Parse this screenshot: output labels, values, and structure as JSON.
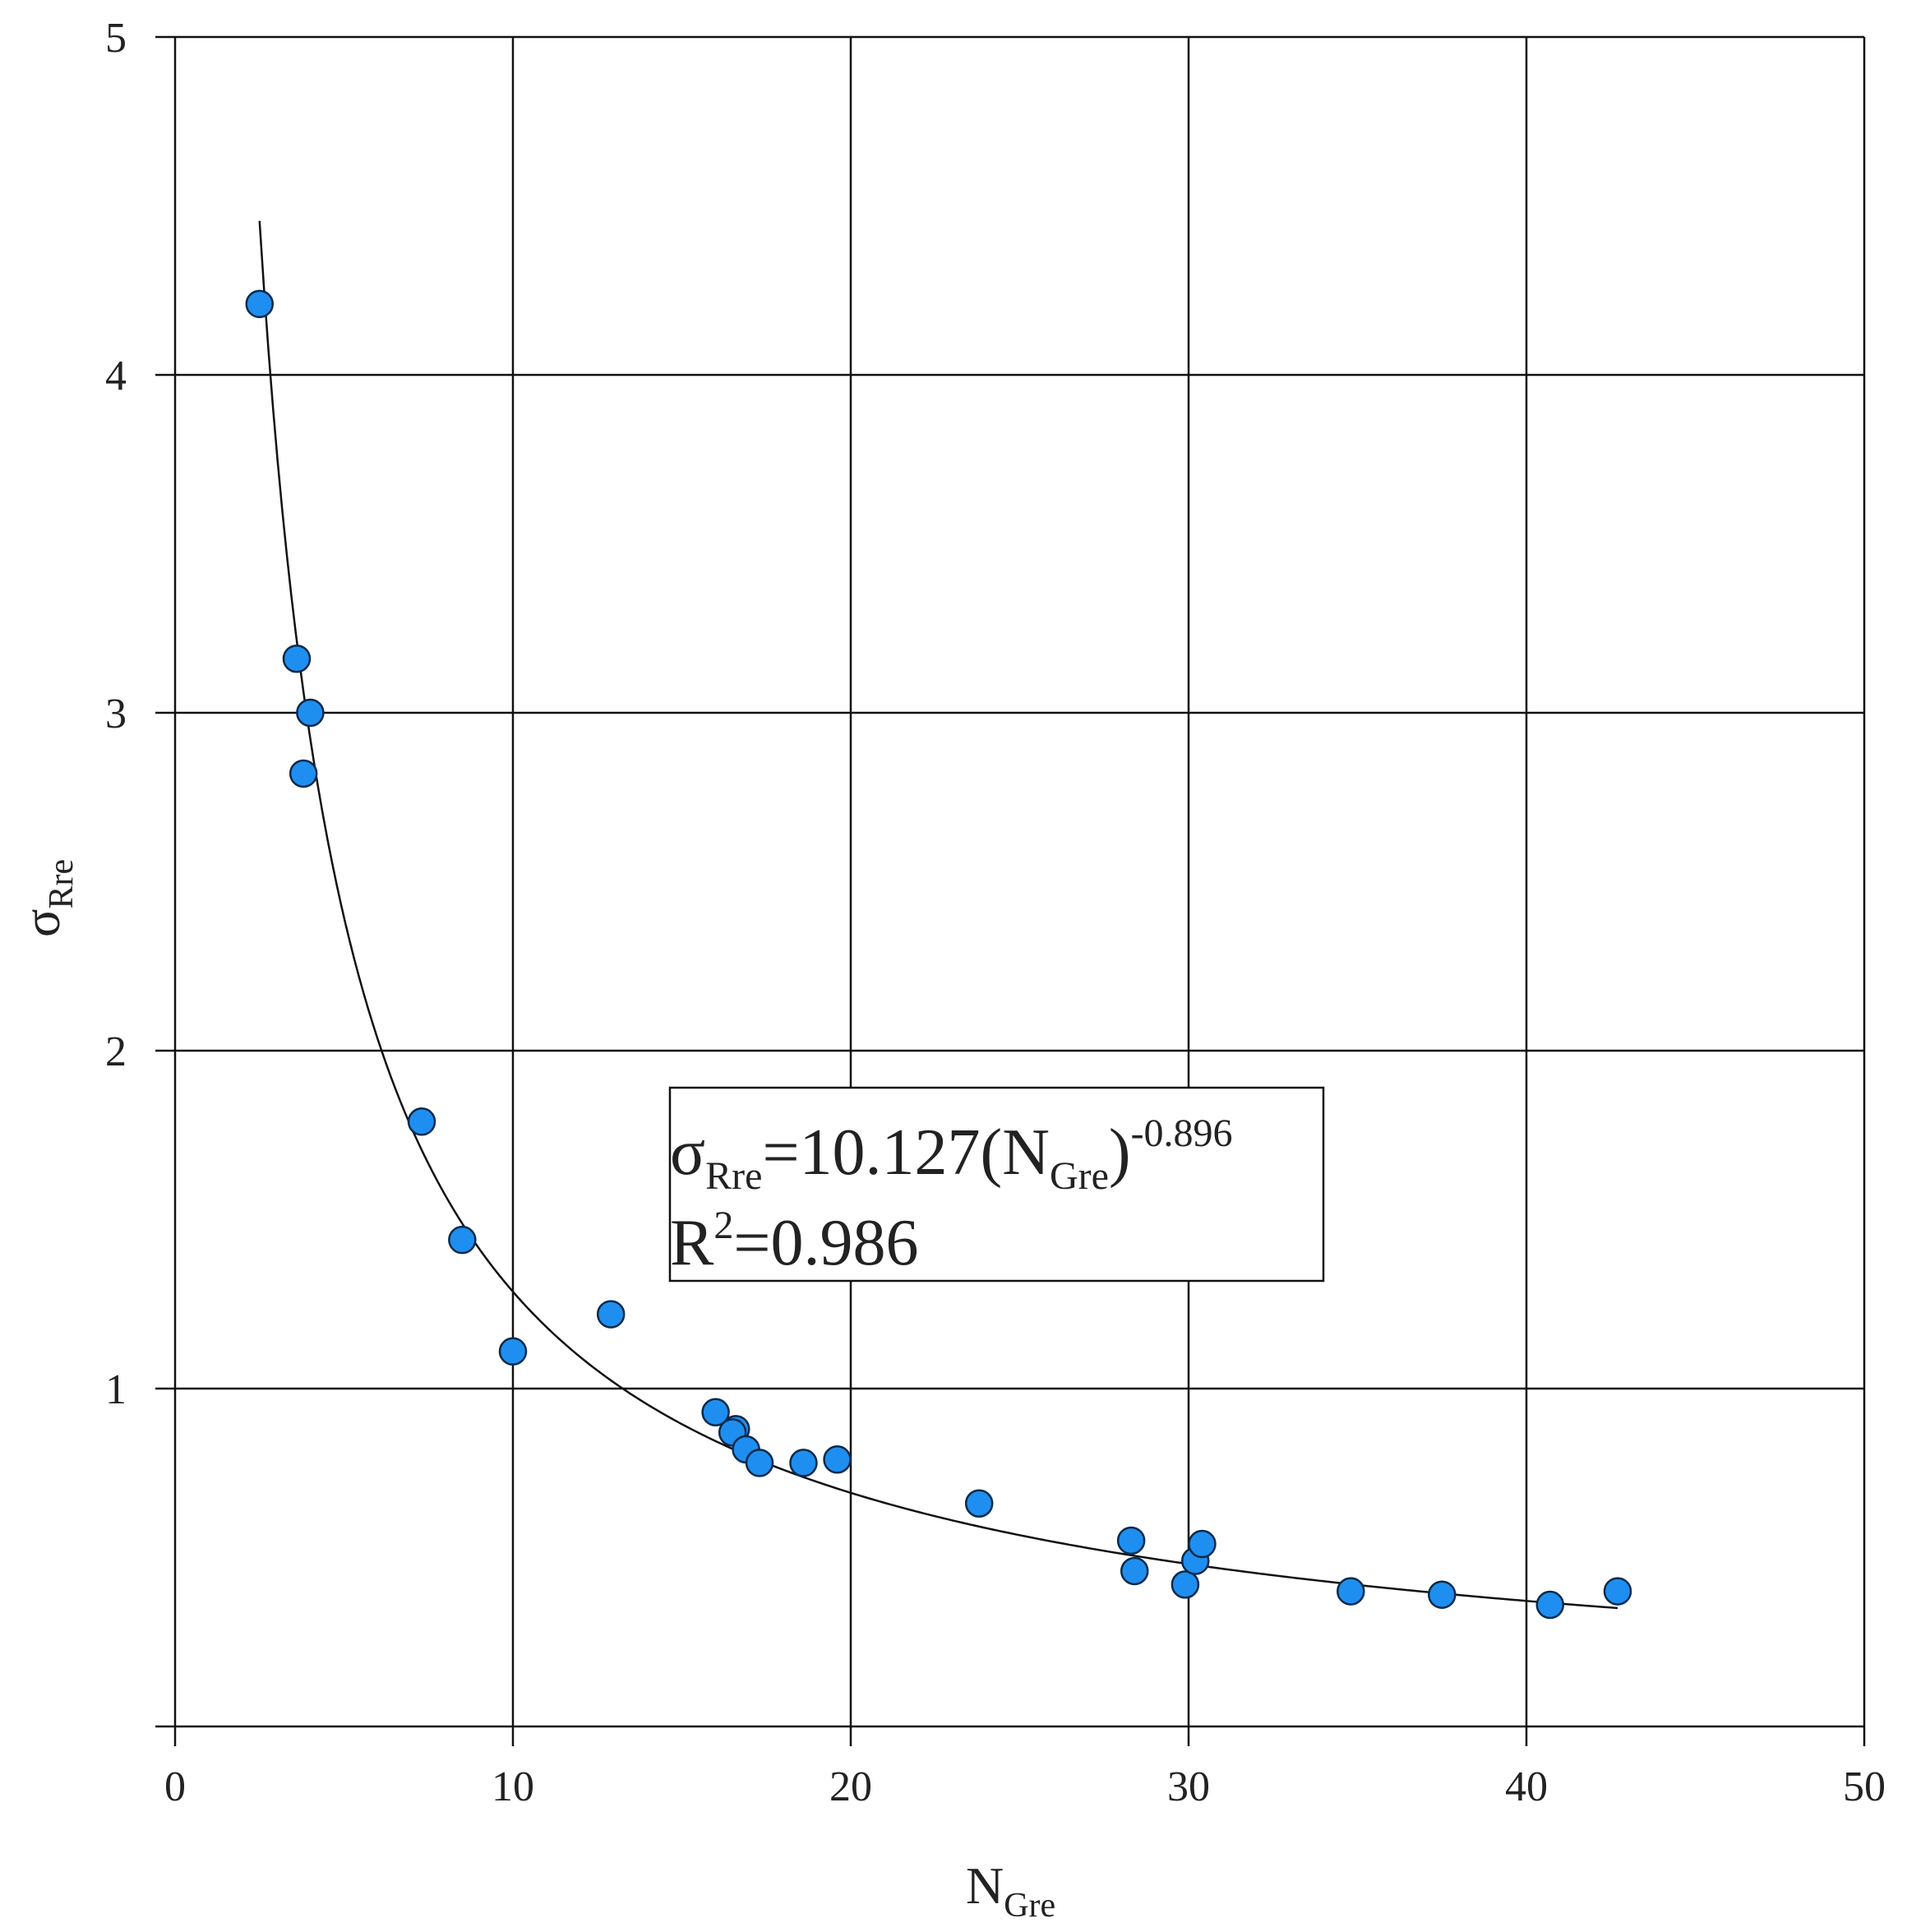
{
  "chart_data": {
    "type": "scatter",
    "xlabel": {
      "main": "N",
      "sub": "Gre"
    },
    "ylabel": {
      "main": "σ",
      "sub": "Rre"
    },
    "xlim": [
      0,
      50
    ],
    "ylim": [
      0,
      5
    ],
    "xticks": [
      "0",
      "10",
      "20",
      "30",
      "40",
      "50"
    ],
    "yticks": [
      "1",
      "2",
      "3",
      "4",
      "5"
    ],
    "grid": true,
    "legend": "none",
    "point_color": "#1e8ff0",
    "points": [
      {
        "x": 2.5,
        "y": 4.21
      },
      {
        "x": 3.6,
        "y": 3.16
      },
      {
        "x": 4.0,
        "y": 3.0
      },
      {
        "x": 3.8,
        "y": 2.82
      },
      {
        "x": 7.3,
        "y": 1.79
      },
      {
        "x": 8.5,
        "y": 1.44
      },
      {
        "x": 10.0,
        "y": 1.11
      },
      {
        "x": 12.9,
        "y": 1.22
      },
      {
        "x": 16.0,
        "y": 0.93
      },
      {
        "x": 16.6,
        "y": 0.88
      },
      {
        "x": 16.5,
        "y": 0.87
      },
      {
        "x": 16.9,
        "y": 0.82
      },
      {
        "x": 17.3,
        "y": 0.78
      },
      {
        "x": 18.6,
        "y": 0.78
      },
      {
        "x": 19.6,
        "y": 0.79
      },
      {
        "x": 23.8,
        "y": 0.66
      },
      {
        "x": 28.3,
        "y": 0.55
      },
      {
        "x": 28.4,
        "y": 0.46
      },
      {
        "x": 29.9,
        "y": 0.42
      },
      {
        "x": 30.2,
        "y": 0.49
      },
      {
        "x": 30.4,
        "y": 0.54
      },
      {
        "x": 34.8,
        "y": 0.4
      },
      {
        "x": 37.5,
        "y": 0.39
      },
      {
        "x": 40.7,
        "y": 0.36
      },
      {
        "x": 42.7,
        "y": 0.4
      }
    ],
    "fit": {
      "form": "power",
      "a": 10.127,
      "b": -0.896,
      "x_range": [
        2.5,
        42.7
      ],
      "r2": 0.986
    },
    "annotation": {
      "eq_sigma": "σ",
      "eq_sub": "Rre",
      "eq_middle": "=10.127(N",
      "eq_sub2": "Gre",
      "eq_close": ")",
      "eq_exp": "-0.896",
      "r2_prefix": "R",
      "r2_exp": "2",
      "r2_value": "=0.986"
    }
  }
}
